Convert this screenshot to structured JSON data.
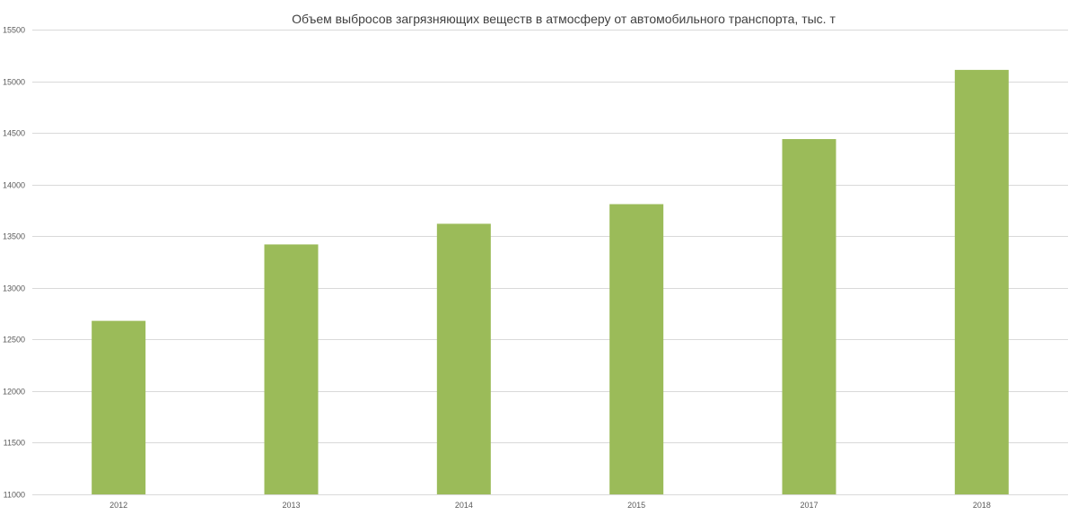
{
  "chart_data": {
    "type": "bar",
    "title": "Объем выбросов загрязняющих веществ в атмосферу от автомобильного транспорта, тыс. т",
    "xlabel": "",
    "ylabel": "",
    "categories": [
      "2012",
      "2013",
      "2014",
      "2015",
      "2017",
      "2018"
    ],
    "values": [
      12680,
      13420,
      13620,
      13810,
      14440,
      15110
    ],
    "ylim": [
      11000,
      15500
    ],
    "yticks": [
      11000,
      11500,
      12000,
      12500,
      13000,
      13500,
      14000,
      14500,
      15000,
      15500
    ],
    "ytick_labels": [
      "11000",
      "11500",
      "12000",
      "12500",
      "13000",
      "13500",
      "14000",
      "14500",
      "15000",
      "15500"
    ],
    "grid": true,
    "legend": "none",
    "bar_color": "#9bbb59"
  }
}
